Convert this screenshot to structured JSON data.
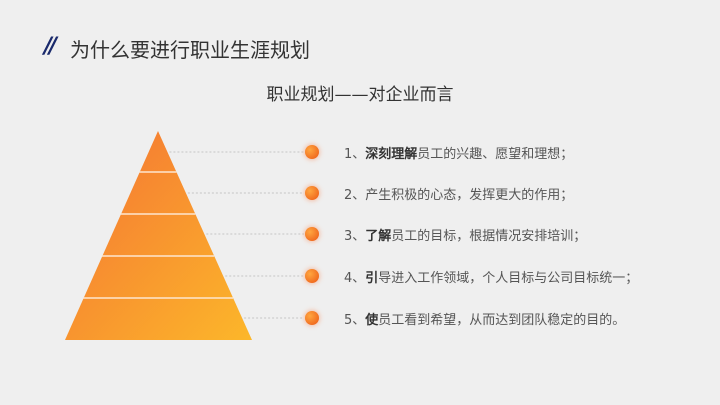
{
  "header": {
    "mark": "//",
    "title": "为什么要进行职业生涯规划"
  },
  "subtitle": "职业规划——对企业而言",
  "colors": {
    "accent": "#1a2a6c",
    "gradient_top": "#f47234",
    "gradient_bottom": "#fcb72a",
    "dot": "#f57a24"
  },
  "items": [
    {
      "num": "1、",
      "bold": "深刻理解",
      "rest": "员工的兴趣、愿望和理想；"
    },
    {
      "num": "2、",
      "bold": "",
      "rest": "产生积极的心态，发挥更大的作用；"
    },
    {
      "num": "3、",
      "bold": "了解",
      "rest": "员工的目标，根据情况安排培训；"
    },
    {
      "num": "4、",
      "bold": "引",
      "rest": "导进入工作领域，个人目标与公司目标统一；"
    },
    {
      "num": "5、",
      "bold": "使",
      "rest": "员工看到希望，从而达到团队稳定的目的。"
    }
  ]
}
